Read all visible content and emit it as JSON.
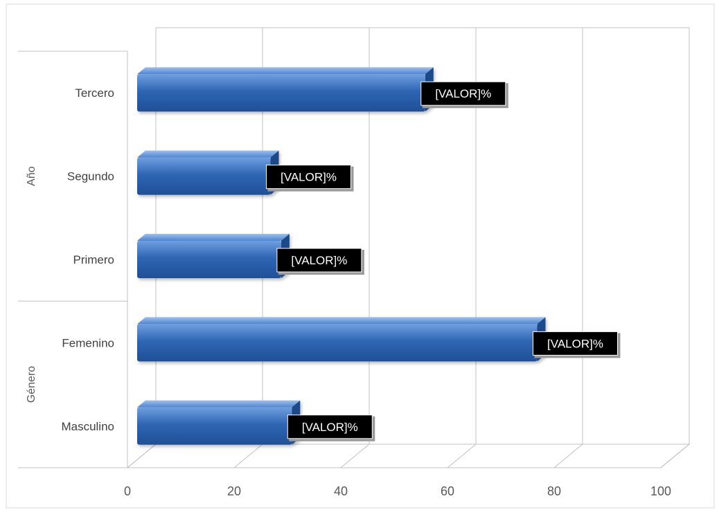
{
  "chart_data": {
    "type": "bar",
    "orientation": "horizontal",
    "style": "3d-clustered",
    "groups": [
      {
        "name": "Año",
        "categories": [
          "Primero",
          "Segundo",
          "Tercero"
        ]
      },
      {
        "name": "Género",
        "categories": [
          "Masculino",
          "Femenino"
        ]
      }
    ],
    "categories": [
      "Masculino",
      "Femenino",
      "Primero",
      "Segundo",
      "Tercero"
    ],
    "values": [
      29,
      75,
      27,
      25,
      54
    ],
    "data_labels": [
      "[VALOR]%",
      "[VALOR]%",
      "[VALOR]%",
      "[VALOR]%",
      "[VALOR]%"
    ],
    "xlim": [
      0,
      100
    ],
    "x_ticks": [
      0,
      20,
      40,
      60,
      80,
      100
    ],
    "grid": true,
    "legend": "none",
    "colors": {
      "bar_light": "#5b8fd6",
      "bar": "#2f66b3",
      "bar_dark": "#1d4a8a",
      "label_bg": "#000000",
      "grid": "#c0c0c0"
    }
  }
}
